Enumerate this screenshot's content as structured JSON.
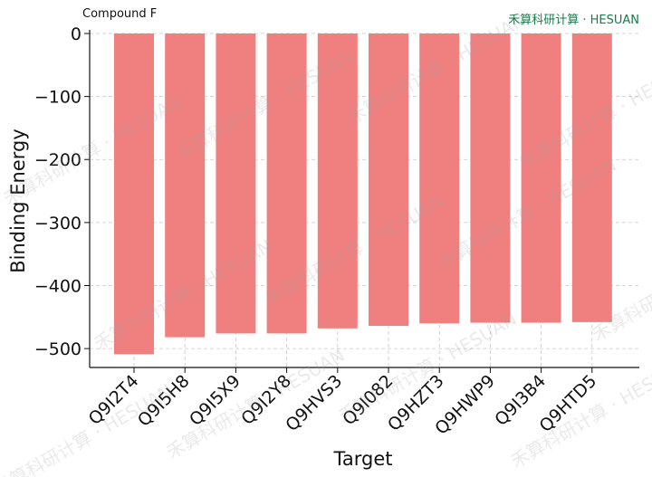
{
  "brand": {
    "text": "禾算科研计算 · HESUAN",
    "color": "#1a7a4a"
  },
  "watermark": {
    "text": "禾算科研计算 · HESUAN"
  },
  "chart_data": {
    "type": "bar",
    "title": "Compound F",
    "xlabel": "Target",
    "ylabel": "Binding Energy",
    "categories": [
      "Q9I2T4",
      "Q9I5H8",
      "Q9I5X9",
      "Q9I2Y8",
      "Q9HVS3",
      "Q9I082",
      "Q9HZT3",
      "Q9HWP9",
      "Q9I3B4",
      "Q9HTD5"
    ],
    "values": [
      -509,
      -482,
      -476,
      -476,
      -468,
      -464,
      -460,
      -459,
      -459,
      -458
    ],
    "ylim": [
      -530,
      0
    ],
    "yticks": [
      0,
      -100,
      -200,
      -300,
      -400,
      -500
    ],
    "ytick_labels": [
      "0",
      "−100",
      "−200",
      "−300",
      "−400",
      "−500"
    ],
    "bar_color": "#f08080",
    "grid": true
  }
}
